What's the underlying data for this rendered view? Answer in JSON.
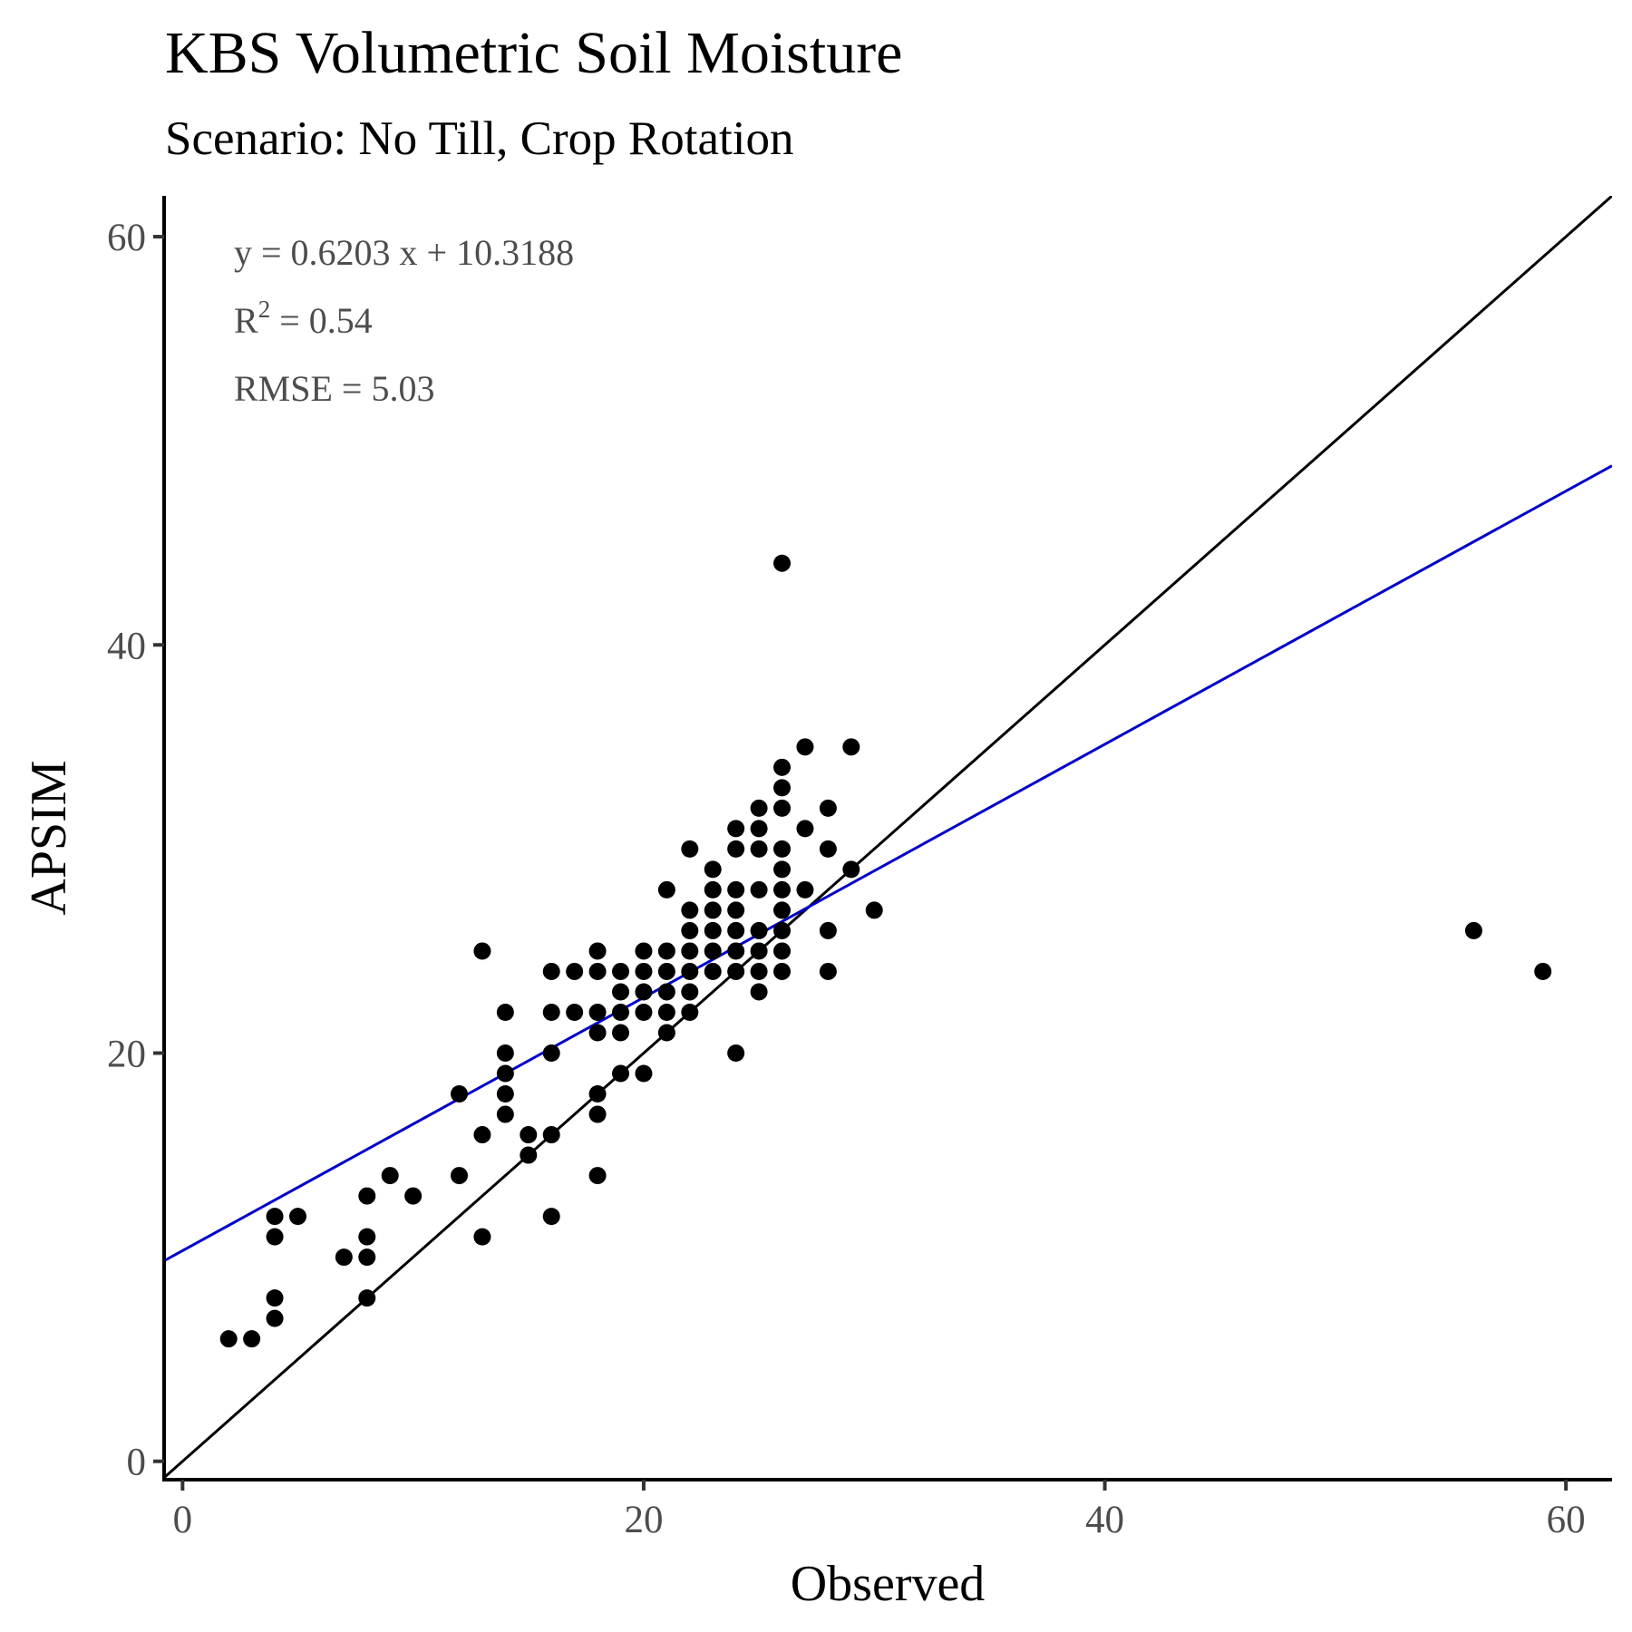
{
  "chart_data": {
    "type": "scatter",
    "title": "KBS Volumetric Soil Moisture",
    "subtitle": "Scenario: No Till, Crop Rotation",
    "xlabel": "Observed",
    "ylabel": "APSIM",
    "xlim": [
      -0.8,
      62
    ],
    "ylim": [
      -0.9,
      62
    ],
    "x_ticks": [
      0,
      20,
      40,
      60
    ],
    "y_ticks": [
      0,
      20,
      40,
      60
    ],
    "grid": false,
    "annotations": {
      "equation": "y = 0.6203 x +  10.3188",
      "r2_prefix": "R",
      "r2_superscript": "2",
      "r2_value": " = 0.54",
      "rmse": "RMSE = 5.03"
    },
    "colors": {
      "points": "#000000",
      "one_to_one_line": "#000000",
      "regression_line": "#0000cc"
    },
    "one_to_one_line": {
      "slope": 1,
      "intercept": 0
    },
    "regression_line": {
      "slope": 0.6203,
      "intercept": 10.3188
    },
    "points": [
      [
        2,
        6
      ],
      [
        3,
        6
      ],
      [
        4,
        12
      ],
      [
        4,
        11
      ],
      [
        4,
        8
      ],
      [
        4,
        7
      ],
      [
        5,
        12
      ],
      [
        7,
        10
      ],
      [
        8,
        13
      ],
      [
        8,
        11
      ],
      [
        8,
        10
      ],
      [
        8,
        8
      ],
      [
        9,
        14
      ],
      [
        10,
        13
      ],
      [
        12,
        18
      ],
      [
        12,
        14
      ],
      [
        13,
        25
      ],
      [
        13,
        16
      ],
      [
        13,
        11
      ],
      [
        14,
        22
      ],
      [
        14,
        20
      ],
      [
        14,
        19
      ],
      [
        14,
        18
      ],
      [
        14,
        17
      ],
      [
        15,
        16
      ],
      [
        15,
        15
      ],
      [
        16,
        24
      ],
      [
        16,
        22
      ],
      [
        16,
        20
      ],
      [
        16,
        16
      ],
      [
        16,
        12
      ],
      [
        17,
        24
      ],
      [
        17,
        22
      ],
      [
        18,
        25
      ],
      [
        18,
        24
      ],
      [
        18,
        22
      ],
      [
        18,
        21
      ],
      [
        18,
        18
      ],
      [
        18,
        17
      ],
      [
        18,
        14
      ],
      [
        19,
        24
      ],
      [
        19,
        23
      ],
      [
        19,
        22
      ],
      [
        19,
        21
      ],
      [
        19,
        19
      ],
      [
        20,
        25
      ],
      [
        20,
        24
      ],
      [
        20,
        23
      ],
      [
        20,
        22
      ],
      [
        20,
        19
      ],
      [
        21,
        28
      ],
      [
        21,
        25
      ],
      [
        21,
        24
      ],
      [
        21,
        23
      ],
      [
        21,
        22
      ],
      [
        21,
        21
      ],
      [
        22,
        30
      ],
      [
        22,
        27
      ],
      [
        22,
        26
      ],
      [
        22,
        25
      ],
      [
        22,
        24
      ],
      [
        22,
        23
      ],
      [
        22,
        22
      ],
      [
        23,
        29
      ],
      [
        23,
        28
      ],
      [
        23,
        27
      ],
      [
        23,
        26
      ],
      [
        23,
        25
      ],
      [
        23,
        24
      ],
      [
        24,
        31
      ],
      [
        24,
        30
      ],
      [
        24,
        28
      ],
      [
        24,
        27
      ],
      [
        24,
        26
      ],
      [
        24,
        25
      ],
      [
        24,
        24
      ],
      [
        24,
        20
      ],
      [
        25,
        32
      ],
      [
        25,
        31
      ],
      [
        25,
        30
      ],
      [
        25,
        28
      ],
      [
        25,
        26
      ],
      [
        25,
        25
      ],
      [
        25,
        24
      ],
      [
        25,
        23
      ],
      [
        26,
        44
      ],
      [
        26,
        34
      ],
      [
        26,
        33
      ],
      [
        26,
        32
      ],
      [
        26,
        30
      ],
      [
        26,
        29
      ],
      [
        26,
        28
      ],
      [
        26,
        27
      ],
      [
        26,
        26
      ],
      [
        26,
        25
      ],
      [
        26,
        24
      ],
      [
        27,
        35
      ],
      [
        27,
        31
      ],
      [
        27,
        28
      ],
      [
        28,
        32
      ],
      [
        28,
        30
      ],
      [
        28,
        26
      ],
      [
        28,
        24
      ],
      [
        29,
        35
      ],
      [
        29,
        29
      ],
      [
        30,
        27
      ],
      [
        56,
        26
      ],
      [
        59,
        24
      ]
    ]
  }
}
